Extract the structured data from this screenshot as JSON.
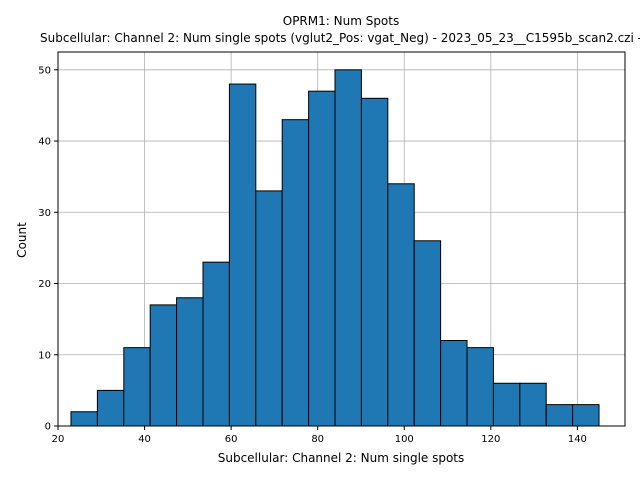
{
  "chart_data": {
    "type": "bar",
    "title": "OPRM1: Num Spots",
    "subtitle": "Subcellular: Channel 2: Num single spots (vglut2_Pos: vgat_Neg) - 2023_05_23__C1595b_scan2.czi - ",
    "xlabel": "Subcellular: Channel 2: Num single spots",
    "ylabel": "Count",
    "xlim": [
      20,
      151
    ],
    "ylim": [
      0,
      52.5
    ],
    "grid": true,
    "xticks": [
      20,
      40,
      60,
      80,
      100,
      120,
      140
    ],
    "yticks": [
      0,
      10,
      20,
      30,
      40,
      50
    ],
    "bin_edges": [
      23,
      29.1,
      35.2,
      41.3,
      47.4,
      53.5,
      59.6,
      65.7,
      71.8,
      77.9,
      84,
      90.1,
      96.2,
      102.3,
      108.4,
      114.5,
      120.6,
      126.7,
      132.8,
      138.9,
      145
    ],
    "values": [
      2,
      5,
      11,
      17,
      18,
      23,
      48,
      33,
      43,
      47,
      50,
      46,
      34,
      26,
      12,
      11,
      6,
      6,
      3,
      3
    ],
    "colors": {
      "bar": "#1f77b4",
      "edge": "#000000",
      "grid": "#b0b0b0"
    }
  }
}
